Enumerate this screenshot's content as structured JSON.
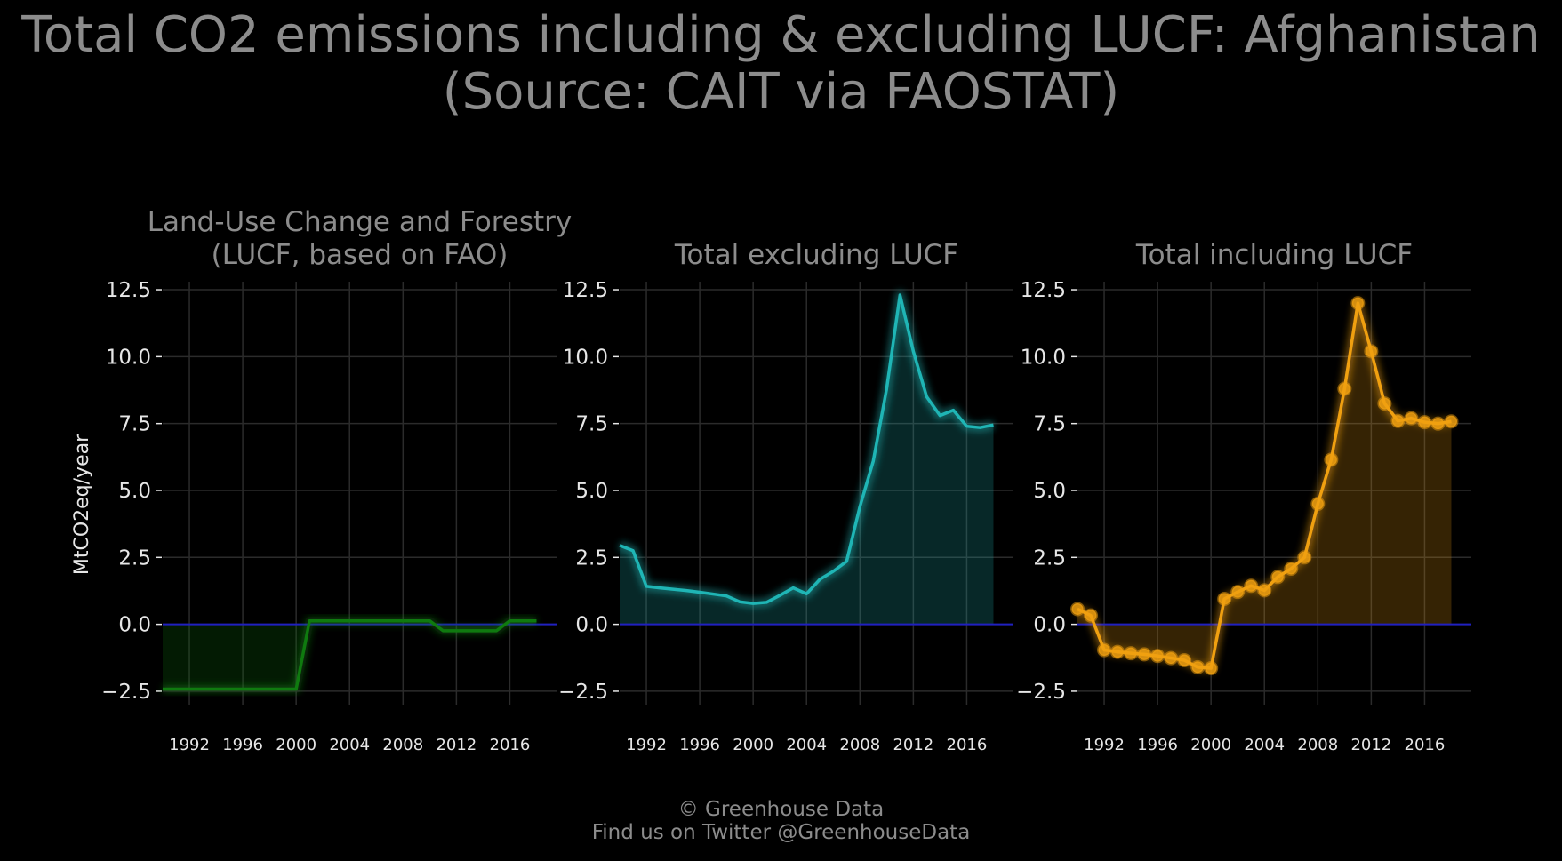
{
  "title_line1": "Total CO2 emissions including & excluding LUCF: Afghanistan",
  "title_line2": "(Source: CAIT via FAOSTAT)",
  "footer_line1": "© Greenhouse Data",
  "footer_line2": "Find us on Twitter @GreenhouseData",
  "ylabel": "MtCO2eq/year",
  "colors": {
    "lucf": "#0f7a0f",
    "excl": "#1fb5b5",
    "incl": "#f0a010",
    "zero_line": "#2020c0"
  },
  "chart_data": [
    {
      "type": "area",
      "title_lines": [
        "Land-Use Change and Forestry",
        "(LUCF, based on FAO)"
      ],
      "ylim": [
        -3.0,
        12.8
      ],
      "xlim": [
        1990,
        2019.5
      ],
      "yticks": [
        -2.5,
        0.0,
        2.5,
        5.0,
        7.5,
        10.0,
        12.5
      ],
      "ytick_labels": [
        "−2.5",
        "0.0",
        "2.5",
        "5.0",
        "7.5",
        "10.0",
        "12.5"
      ],
      "xticks": [
        1992,
        1996,
        2000,
        2004,
        2008,
        2012,
        2016
      ],
      "xtick_labels": [
        "1992",
        "1996",
        "2000",
        "2004",
        "2008",
        "2012",
        "2016"
      ],
      "markers": false,
      "x": [
        1990,
        1991,
        1992,
        1993,
        1994,
        1995,
        1996,
        1997,
        1998,
        1999,
        2000,
        2001,
        2002,
        2003,
        2004,
        2005,
        2006,
        2007,
        2008,
        2009,
        2010,
        2011,
        2012,
        2013,
        2014,
        2015,
        2016,
        2017,
        2018
      ],
      "values": [
        -2.42,
        -2.42,
        -2.42,
        -2.42,
        -2.42,
        -2.42,
        -2.42,
        -2.42,
        -2.42,
        -2.42,
        -2.42,
        0.13,
        0.13,
        0.13,
        0.13,
        0.13,
        0.13,
        0.13,
        0.13,
        0.13,
        0.13,
        -0.24,
        -0.24,
        -0.24,
        -0.24,
        -0.24,
        0.13,
        0.13,
        0.13
      ]
    },
    {
      "type": "area",
      "title_lines": [
        "Total excluding LUCF"
      ],
      "ylim": [
        -3.0,
        12.8
      ],
      "xlim": [
        1990,
        2019.5
      ],
      "yticks": [
        -2.5,
        0.0,
        2.5,
        5.0,
        7.5,
        10.0,
        12.5
      ],
      "ytick_labels": [
        "−2.5",
        "0.0",
        "2.5",
        "5.0",
        "7.5",
        "10.0",
        "12.5"
      ],
      "xticks": [
        1992,
        1996,
        2000,
        2004,
        2008,
        2012,
        2016
      ],
      "xtick_labels": [
        "1992",
        "1996",
        "2000",
        "2004",
        "2008",
        "2012",
        "2016"
      ],
      "markers": false,
      "x": [
        1990,
        1991,
        1992,
        1993,
        1994,
        1995,
        1996,
        1997,
        1998,
        1999,
        2000,
        2001,
        2002,
        2003,
        2004,
        2005,
        2006,
        2007,
        2008,
        2009,
        2010,
        2011,
        2012,
        2013,
        2014,
        2015,
        2016,
        2017,
        2018
      ],
      "values": [
        2.95,
        2.75,
        1.42,
        1.36,
        1.31,
        1.26,
        1.2,
        1.13,
        1.06,
        0.84,
        0.78,
        0.82,
        1.08,
        1.36,
        1.14,
        1.68,
        1.98,
        2.35,
        4.4,
        6.1,
        8.8,
        12.3,
        10.2,
        8.5,
        7.8,
        8.0,
        7.4,
        7.35,
        7.45
      ]
    },
    {
      "type": "area",
      "title_lines": [
        "Total including LUCF"
      ],
      "ylim": [
        -3.0,
        12.8
      ],
      "xlim": [
        1990,
        2019.5
      ],
      "yticks": [
        -2.5,
        0.0,
        2.5,
        5.0,
        7.5,
        10.0,
        12.5
      ],
      "ytick_labels": [
        "−2.5",
        "0.0",
        "2.5",
        "5.0",
        "7.5",
        "10.0",
        "12.5"
      ],
      "xticks": [
        1992,
        1996,
        2000,
        2004,
        2008,
        2012,
        2016
      ],
      "xtick_labels": [
        "1992",
        "1996",
        "2000",
        "2004",
        "2008",
        "2012",
        "2016"
      ],
      "markers": true,
      "x": [
        1990,
        1991,
        1992,
        1993,
        1994,
        1995,
        1996,
        1997,
        1998,
        1999,
        2000,
        2001,
        2002,
        2003,
        2004,
        2005,
        2006,
        2007,
        2008,
        2009,
        2010,
        2011,
        2012,
        2013,
        2014,
        2015,
        2016,
        2017,
        2018
      ],
      "values": [
        0.57,
        0.33,
        -0.96,
        -1.03,
        -1.08,
        -1.12,
        -1.18,
        -1.26,
        -1.34,
        -1.6,
        -1.64,
        0.95,
        1.21,
        1.44,
        1.27,
        1.77,
        2.08,
        2.5,
        4.5,
        6.15,
        8.8,
        12.0,
        10.2,
        8.25,
        7.6,
        7.7,
        7.55,
        7.5,
        7.58
      ]
    }
  ]
}
